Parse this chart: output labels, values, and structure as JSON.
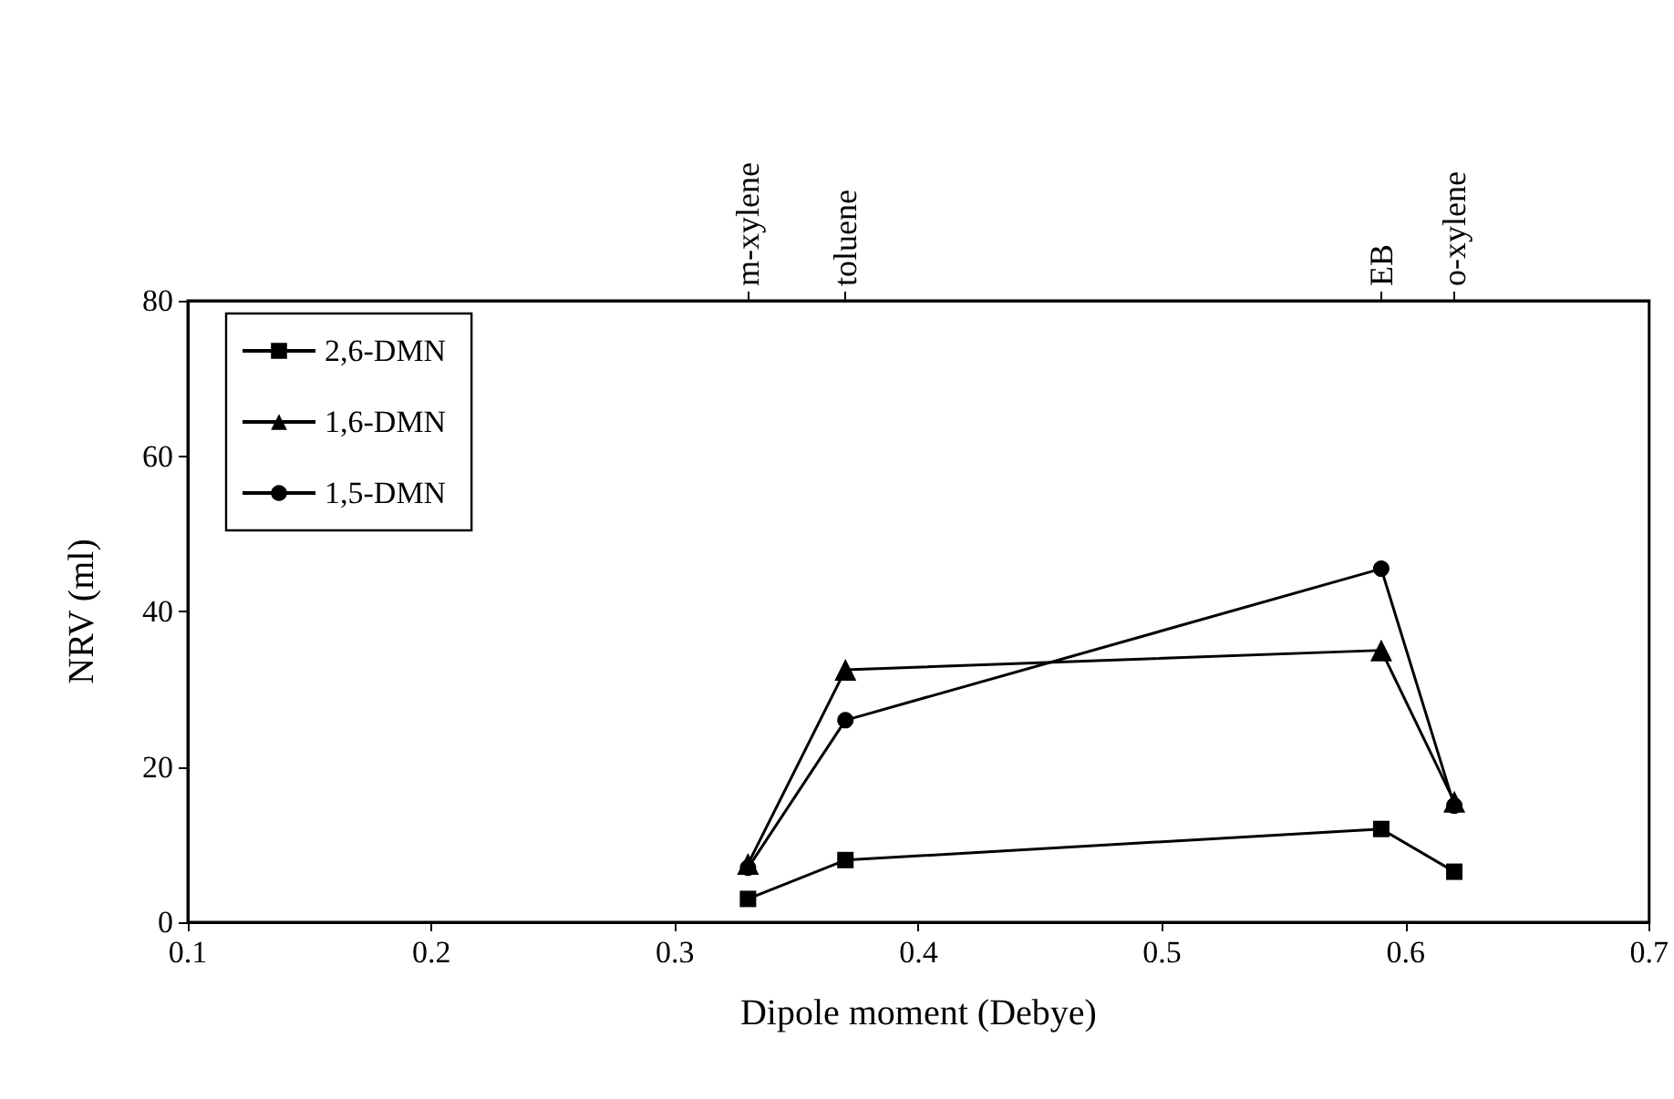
{
  "chart_data": {
    "type": "line",
    "xlabel": "Dipole moment (Debye)",
    "ylabel": "NRV (ml)",
    "xlim": [
      0.1,
      0.7
    ],
    "xticks": [
      0.1,
      0.2,
      0.3,
      0.4,
      0.5,
      0.6,
      0.7
    ],
    "ylim": [
      0,
      80
    ],
    "yticks": [
      0,
      20,
      40,
      60,
      80
    ],
    "annotations": [
      {
        "text": "m-xylene",
        "x": 0.33
      },
      {
        "text": "toluene",
        "x": 0.37
      },
      {
        "text": "EB",
        "x": 0.59
      },
      {
        "text": "o-xylene",
        "x": 0.62
      }
    ],
    "x": [
      0.33,
      0.37,
      0.59,
      0.62
    ],
    "series": [
      {
        "name": "2,6-DMN",
        "color": "#000000",
        "marker": "square",
        "values": [
          3,
          8,
          12,
          6.5
        ]
      },
      {
        "name": "1,6-DMN",
        "color": "#000000",
        "marker": "triangle",
        "values": [
          7.5,
          32.5,
          35,
          15.5
        ]
      },
      {
        "name": "1,5-DMN",
        "color": "#000000",
        "marker": "circle",
        "values": [
          7,
          26,
          45.5,
          15
        ]
      }
    ],
    "legend": "top left",
    "grid": false
  }
}
